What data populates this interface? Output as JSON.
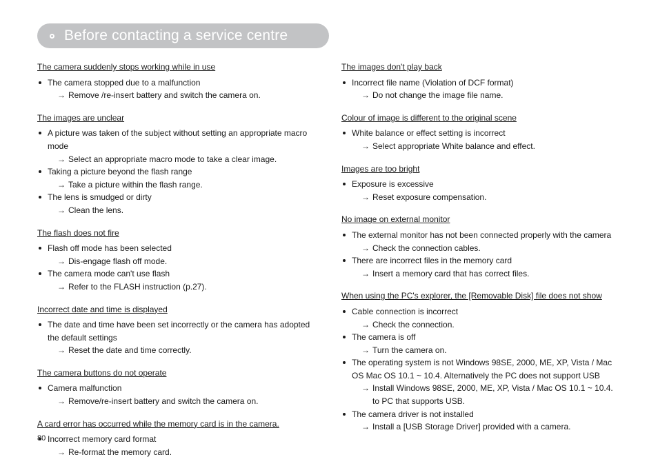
{
  "header": {
    "title": "Before contacting a service centre"
  },
  "page_number": "80",
  "arrow_glyph": "→",
  "columns": [
    {
      "issues": [
        {
          "title": "The camera suddenly stops working while in use",
          "items": [
            {
              "cause": "The camera stopped due to a malfunction",
              "solutions": [
                "Remove /re-insert battery and switch the camera on."
              ]
            }
          ]
        },
        {
          "title": "The images are unclear",
          "items": [
            {
              "cause": "A picture was taken of the subject without setting an appropriate macro mode",
              "solutions": [
                "Select an appropriate macro mode to take a clear image."
              ]
            },
            {
              "cause": "Taking a picture beyond the flash range",
              "solutions": [
                "Take a picture within the flash range."
              ]
            },
            {
              "cause": "The lens is smudged or dirty",
              "solutions": [
                "Clean the lens."
              ]
            }
          ]
        },
        {
          "title": "The flash does not fire",
          "items": [
            {
              "cause": "Flash off mode has been selected",
              "solutions": [
                "Dis-engage flash off mode."
              ]
            },
            {
              "cause": "The camera mode can't use flash",
              "solutions": [
                "Refer to the FLASH instruction (p.27)."
              ]
            }
          ]
        },
        {
          "title": "Incorrect date and time is displayed",
          "items": [
            {
              "cause": "The date and time have been set incorrectly or the camera has adopted the default settings",
              "solutions": [
                "Reset the date and time correctly."
              ]
            }
          ]
        },
        {
          "title": "The camera buttons do not operate",
          "items": [
            {
              "cause": "Camera malfunction",
              "solutions": [
                "Remove/re-insert battery and switch the camera on."
              ]
            }
          ]
        },
        {
          "title": "A card error has occurred while the memory card is in the camera.",
          "items": [
            {
              "cause": "Incorrect memory card format",
              "solutions": [
                "Re-format the memory card."
              ]
            }
          ]
        }
      ]
    },
    {
      "issues": [
        {
          "title": "The images don't play back",
          "items": [
            {
              "cause": "Incorrect file name (Violation of DCF format)",
              "solutions": [
                "Do not change the image file name."
              ]
            }
          ]
        },
        {
          "title": "Colour of image is different to the original scene",
          "items": [
            {
              "cause": "White balance or effect setting is incorrect",
              "solutions": [
                "Select appropriate White balance and effect."
              ]
            }
          ]
        },
        {
          "title": "Images are too bright",
          "items": [
            {
              "cause": "Exposure is excessive",
              "solutions": [
                "Reset exposure compensation."
              ]
            }
          ]
        },
        {
          "title": "No image on external monitor",
          "items": [
            {
              "cause": "The external monitor has not been connected properly with the camera",
              "solutions": [
                "Check the connection cables."
              ]
            },
            {
              "cause": "There are incorrect files in the memory card",
              "solutions": [
                "Insert a memory card that has correct files."
              ]
            }
          ]
        },
        {
          "title": "When using the PC's explorer, the [Removable Disk] file does not show",
          "items": [
            {
              "cause": "Cable connection is incorrect",
              "solutions": [
                "Check the connection."
              ]
            },
            {
              "cause": "The camera is off",
              "solutions": [
                "Turn the camera on."
              ]
            },
            {
              "cause": "The operating system is not Windows 98SE, 2000, ME, XP, Vista / Mac OS Mac OS 10.1 ~ 10.4. Alternatively the PC does not support USB",
              "solutions": [
                "Install Windows 98SE, 2000, ME, XP, Vista / Mac OS 10.1 ~ 10.4. to PC that supports USB."
              ]
            },
            {
              "cause": "The camera driver is not installed",
              "solutions": [
                "Install a [USB Storage Driver] provided with a camera."
              ]
            }
          ]
        }
      ]
    }
  ]
}
